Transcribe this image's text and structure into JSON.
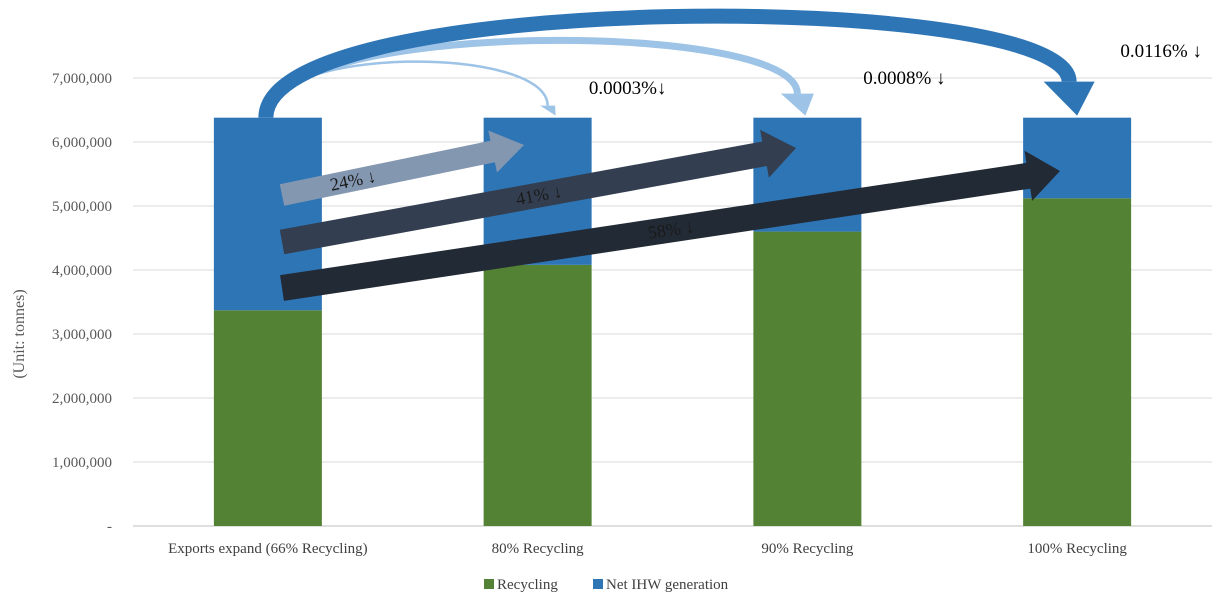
{
  "chart_data": {
    "type": "bar",
    "stacked": true,
    "categories": [
      "Exports expand (66% Recycling)",
      "80% Recycling",
      "90% Recycling",
      "100% Recycling"
    ],
    "series": [
      {
        "name": "Recycling",
        "values": [
          3370000,
          4080000,
          4600000,
          5120000
        ]
      },
      {
        "name": "Net IHW generation",
        "values": [
          3010000,
          2300000,
          1780000,
          1260000
        ]
      }
    ],
    "ylabel": "(Unit: tonnes)",
    "ylim": [
      0,
      7000000
    ],
    "yticks": [
      0,
      1000000,
      2000000,
      3000000,
      4000000,
      5000000,
      6000000,
      7000000
    ],
    "ytick_labels": [
      "-",
      "1,000,000",
      "2,000,000",
      "3,000,000",
      "4,000,000",
      "5,000,000",
      "6,000,000",
      "7,000,000"
    ],
    "grid": true,
    "legend": "bottom-center",
    "colors": {
      "Recycling": "#548235",
      "Net IHW generation": "#2E75B6"
    },
    "top_annotations": [
      "0.0003%↓",
      "0.0008% ↓",
      "0.0116% ↓"
    ],
    "arrow_annotations": [
      "24% ↓",
      "41% ↓",
      "58% ↓"
    ]
  }
}
